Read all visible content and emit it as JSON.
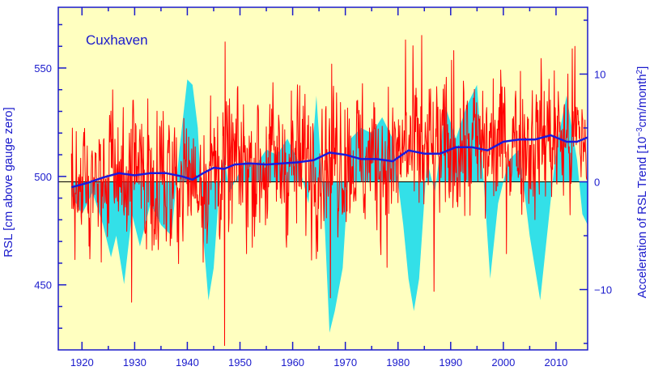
{
  "chart_data": {
    "type": "line",
    "title": "Cuxhaven",
    "xlabel": "",
    "ylabel_left": "RSL [cm above gauge zero]",
    "ylabel_right_parts": [
      "Acceleration of RSL Trend [10",
      "−3",
      "cm/month",
      "2",
      "]"
    ],
    "xlim": [
      1915.5,
      2016
    ],
    "ylim_left": [
      420,
      578
    ],
    "ylim_right": [
      -15.6,
      16.2
    ],
    "x_ticks": [
      1920,
      1930,
      1940,
      1950,
      1960,
      1970,
      1980,
      1990,
      2000,
      2010
    ],
    "y_ticks_left": [
      450,
      500,
      550
    ],
    "y_ticks_right": [
      -10,
      0,
      10
    ],
    "grid": false,
    "colors": {
      "background": "#ffffc0",
      "frame": "#1a1acc",
      "monthly_rsl": "#ff0000",
      "trend": "#1a1adc",
      "acceleration": "#33e0e8",
      "zero_line": "#000000"
    },
    "series": [
      {
        "role": "acceleration-fill",
        "axis": "right",
        "x": [
          1918,
          1920,
          1922,
          1924,
          1925.5,
          1926.5,
          1928,
          1929.5,
          1931,
          1933,
          1935,
          1937,
          1938.5,
          1940,
          1941,
          1942,
          1943,
          1944,
          1945,
          1946,
          1947,
          1948,
          1949.5,
          1951,
          1953,
          1955,
          1957,
          1959,
          1961,
          1963,
          1964.5,
          1966,
          1967,
          1968,
          1969.5,
          1971,
          1973,
          1975,
          1977,
          1979,
          1981,
          1982,
          1983,
          1984,
          1985.5,
          1987,
          1989,
          1991,
          1993,
          1995,
          1996,
          1997.5,
          1999,
          2001,
          2003,
          2005,
          2007,
          2008.5,
          2010,
          2012,
          2014,
          2015,
          2016
        ],
        "values": [
          -1.2,
          -3,
          -1,
          -4,
          -7,
          -5,
          -9.5,
          -3,
          -6,
          -2,
          -4,
          -5,
          3,
          9.5,
          9,
          5,
          -5,
          -11,
          -8,
          -1,
          2.5,
          -1,
          0.5,
          2,
          1.5,
          3,
          2.5,
          4,
          2,
          -2,
          8,
          -3,
          -14,
          -12,
          -8,
          4,
          5,
          4.5,
          6,
          4,
          -4,
          -9,
          -12,
          -9,
          2,
          -1,
          7,
          4,
          7,
          9,
          2,
          -9,
          -2,
          2,
          3,
          -5,
          -11,
          -4,
          3,
          8,
          2,
          -3,
          -4
        ]
      },
      {
        "role": "trend",
        "axis": "left",
        "x": [
          1918,
          1921,
          1924,
          1927,
          1930,
          1933,
          1936,
          1939,
          1941,
          1943,
          1945,
          1947,
          1949,
          1952,
          1955,
          1958,
          1961,
          1964,
          1967,
          1970,
          1973,
          1976,
          1979,
          1982,
          1985,
          1988,
          1991,
          1994,
          1997,
          2000,
          2003,
          2006,
          2009,
          2012,
          2014,
          2016
        ],
        "values": [
          495,
          497,
          499.5,
          501.5,
          500.5,
          501.5,
          501.5,
          500,
          498.5,
          501.5,
          504,
          503.5,
          505.5,
          506,
          505.5,
          506,
          506.5,
          507.5,
          511,
          510,
          508,
          508,
          507,
          512,
          510.5,
          510.5,
          513.5,
          513.5,
          512,
          516,
          517,
          517,
          519,
          516,
          516,
          518
        ]
      },
      {
        "role": "monthly-rsl",
        "axis": "left",
        "generated": {
          "x_start": 1918.0,
          "x_end": 2015.9,
          "per_year": 12,
          "seed": 20719,
          "amplitude_cm": 17,
          "extreme_low": [
            [
              1947.1,
              422
            ],
            [
              1929.4,
              442
            ],
            [
              1967.2,
              444
            ],
            [
              1986.8,
              447
            ]
          ],
          "extreme_high": [
            [
              1947.2,
              562
            ],
            [
              1981.4,
              563
            ],
            [
              1984.5,
              565
            ],
            [
              1990.6,
              558
            ],
            [
              2013.6,
              560
            ]
          ]
        }
      }
    ]
  }
}
